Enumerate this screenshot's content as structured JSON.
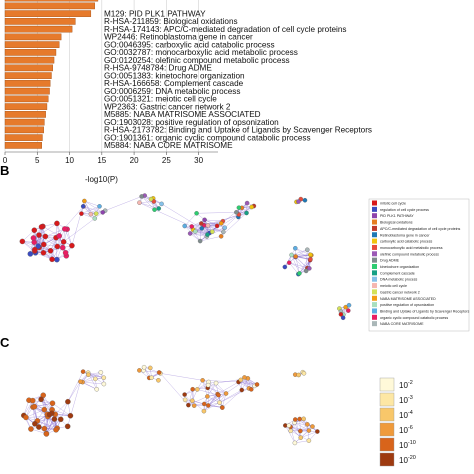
{
  "panels": {
    "b": "B",
    "c": "C"
  },
  "chart_data": [
    {
      "type": "bar",
      "orientation": "horizontal",
      "xlabel": "-log10(P)",
      "xlim": [
        0,
        33
      ],
      "xticks": [
        "0",
        "5",
        "10",
        "15",
        "20",
        "25",
        "30"
      ],
      "grid": true,
      "bar_color": "#e67a2c",
      "categories": [
        "",
        "",
        "M129: PID PLK1 PATHWAY",
        "R-HSA-211859: Biological oxidations",
        "R-HSA-174143: APC/C-mediated degradation of cell cycle proteins",
        "WP2446: Retinoblastoma gene in cancer",
        "GO:0046395: carboxylic acid catabolic process",
        "GO:0032787: monocarboxylic acid metabolic process",
        "GO:0120254: olefinic compound metabolic process",
        "R-HSA-9748784: Drug ADME",
        "GO:0051383: kinetochore organization",
        "R-HSA-166658: Complement cascade",
        "GO:0006259: DNA metabolic process",
        "GO:0051321: meiotic cell cycle",
        "WP2363: Gastric cancer network 2",
        "M5885: NABA MATRISOME ASSOCIATED",
        "GO:1903028: positive regulation of opsonization",
        "R-HSA-2173782: Binding and Uptake of Ligands by Scavenger Receptors",
        "GO:1901361: organic cyclic compound catabolic process",
        "M5884: NABA CORE MATRISOME"
      ],
      "values": [
        14.4,
        13.9,
        13.3,
        10.9,
        10.4,
        8.7,
        8.4,
        7.9,
        7.6,
        7.4,
        7.2,
        7.0,
        6.9,
        6.7,
        6.5,
        6.3,
        6.1,
        6.0,
        5.8,
        5.7
      ]
    },
    {
      "type": "network",
      "panel": "B",
      "legend": [
        {
          "label": "mitotic cell cycle",
          "color": "#d7191c"
        },
        {
          "label": "regulation of cell cycle process",
          "color": "#3b4cc0"
        },
        {
          "label": "PID PLK1 PATHWAY",
          "color": "#8e44ad"
        },
        {
          "label": "Biological oxidations",
          "color": "#e67e22"
        },
        {
          "label": "APC/C-mediated degradation of cell cycle proteins",
          "color": "#c0392b"
        },
        {
          "label": "Retinoblastoma gene in cancer",
          "color": "#1f78b4"
        },
        {
          "label": "carboxylic acid catabolic process",
          "color": "#f1c40f"
        },
        {
          "label": "monocarboxylic acid metabolic process",
          "color": "#e74c3c"
        },
        {
          "label": "olefinic compound metabolic process",
          "color": "#9b59b6"
        },
        {
          "label": "Drug ADME",
          "color": "#7f8c8d"
        },
        {
          "label": "kinetochore organization",
          "color": "#2ecc71"
        },
        {
          "label": "Complement cascade",
          "color": "#16a085"
        },
        {
          "label": "DNA metabolic process",
          "color": "#85c1e9"
        },
        {
          "label": "meiotic cell cycle",
          "color": "#f5b7b1"
        },
        {
          "label": "Gastric cancer network 2",
          "color": "#d4e157"
        },
        {
          "label": "NABA MATRISOME ASSOCIATED",
          "color": "#f39c12"
        },
        {
          "label": "positive regulation of opsonization",
          "color": "#a9dfbf"
        },
        {
          "label": "Binding and Uptake of Ligands by Scavenger Receptors",
          "color": "#5dade2"
        },
        {
          "label": "organic cyclic compound catabolic process",
          "color": "#e91e63"
        },
        {
          "label": "NABA CORE MATRISOME",
          "color": "#aab7b8"
        }
      ]
    },
    {
      "type": "network",
      "panel": "C",
      "color_scale": [
        {
          "base": "10",
          "exp": "-2",
          "color": "#fff9d9"
        },
        {
          "base": "10",
          "exp": "-3",
          "color": "#fde7a4"
        },
        {
          "base": "10",
          "exp": "-4",
          "color": "#f8c76a"
        },
        {
          "base": "10",
          "exp": "-6",
          "color": "#ef9a3b"
        },
        {
          "base": "10",
          "exp": "-10",
          "color": "#d8641b"
        },
        {
          "base": "10",
          "exp": "-20",
          "color": "#9e3a10"
        }
      ]
    }
  ]
}
